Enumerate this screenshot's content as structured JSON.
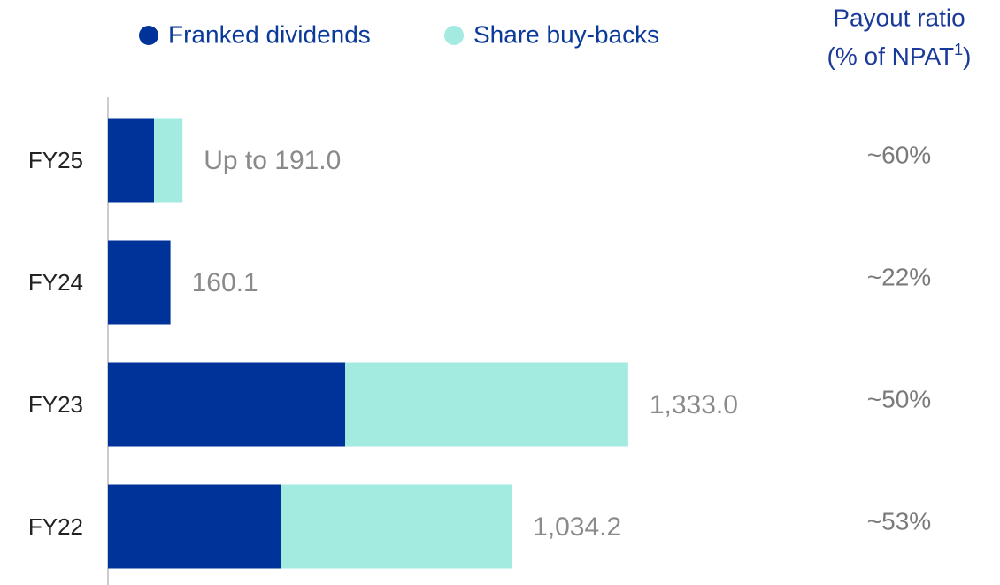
{
  "chart_data": {
    "type": "hbar_stacked",
    "categories": [
      "FY25",
      "FY24",
      "FY23",
      "FY22"
    ],
    "series": [
      {
        "name": "Franked dividends",
        "color": "#00339a",
        "values": [
          118,
          160.1,
          608,
          444
        ]
      },
      {
        "name": "Share buy-backs",
        "color": "#a3eae0",
        "values": [
          73,
          0,
          725,
          590.2
        ]
      }
    ],
    "totals": [
      191.0,
      160.1,
      1333.0,
      1034.2
    ],
    "total_labels": [
      "Up to 191.0",
      "160.1",
      "1,333.0",
      "1,034.2"
    ],
    "payout_title": "Payout ratio",
    "payout_subtitle": "(% of NPAT",
    "payout_footnote": "1",
    "payout_close": ")",
    "payout_ratios": [
      60,
      22,
      50,
      53
    ],
    "payout_labels": [
      "~60%",
      "~22%",
      "~50%",
      "~53%"
    ],
    "xlim": [
      0,
      2000
    ]
  }
}
